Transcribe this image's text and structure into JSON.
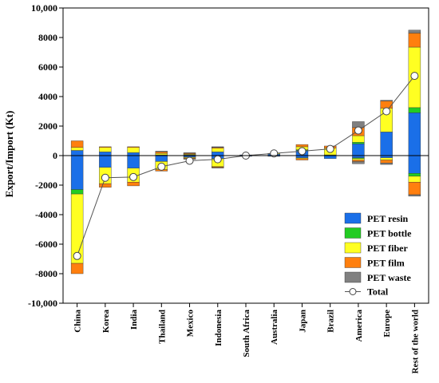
{
  "chart_data": {
    "type": "bar",
    "stacked": true,
    "title": "",
    "xlabel": "",
    "ylabel": "Export/Import (Kt)",
    "ylim": [
      -10000,
      10000
    ],
    "yticks": [
      -10000,
      -8000,
      -6000,
      -4000,
      -2000,
      0,
      2000,
      4000,
      6000,
      8000,
      10000
    ],
    "ytick_labels": [
      "-10,000",
      "-8000",
      "-6000",
      "-4000",
      "-2000",
      "0",
      "2000",
      "4000",
      "6000",
      "8000",
      "10,000"
    ],
    "categories": [
      "China",
      "Korea",
      "India",
      "Thailand",
      "Mexico",
      "Indonesia",
      "South Africa",
      "Australia",
      "Japan",
      "Brazil",
      "America",
      "Europe",
      "Rest of the world"
    ],
    "series": [
      {
        "name": "PET resin",
        "color": "#1a6fe8",
        "positive": [
          350,
          250,
          200,
          50,
          50,
          250,
          50,
          100,
          350,
          0,
          800,
          1600,
          2900
        ],
        "negative": [
          -2300,
          -800,
          -850,
          -400,
          -100,
          -200,
          -50,
          -50,
          -150,
          -200,
          -150,
          -150,
          -1200
        ]
      },
      {
        "name": "PET bottle",
        "color": "#22cc22",
        "positive": [
          0,
          0,
          0,
          0,
          0,
          0,
          0,
          0,
          50,
          50,
          100,
          0,
          350
        ],
        "negative": [
          -300,
          0,
          0,
          0,
          0,
          0,
          0,
          0,
          0,
          0,
          -50,
          0,
          -200
        ]
      },
      {
        "name": "PET fiber",
        "color": "#ffff22",
        "positive": [
          200,
          300,
          350,
          100,
          50,
          250,
          0,
          50,
          200,
          450,
          450,
          1600,
          4100
        ],
        "negative": [
          -4700,
          -1100,
          -950,
          -550,
          -50,
          -550,
          0,
          0,
          -50,
          0,
          -100,
          -150,
          -400
        ]
      },
      {
        "name": "PET film",
        "color": "#ff7f0e",
        "positive": [
          450,
          50,
          50,
          100,
          50,
          50,
          0,
          0,
          150,
          150,
          550,
          500,
          950
        ],
        "negative": [
          -700,
          -250,
          -250,
          -100,
          -50,
          -50,
          0,
          0,
          -100,
          0,
          -100,
          -200,
          -850
        ]
      },
      {
        "name": "PET waste",
        "color": "#808080",
        "positive": [
          0,
          0,
          0,
          50,
          50,
          50,
          0,
          0,
          0,
          0,
          400,
          50,
          200
        ],
        "negative": [
          0,
          0,
          0,
          0,
          -50,
          -50,
          0,
          0,
          0,
          0,
          -150,
          -100,
          -100
        ]
      }
    ],
    "total": {
      "name": "Total",
      "values": [
        -6800,
        -1500,
        -1450,
        -750,
        -350,
        -250,
        0,
        150,
        300,
        450,
        1700,
        3000,
        5400
      ]
    },
    "legend_position": "bottom-right",
    "grid": false
  }
}
